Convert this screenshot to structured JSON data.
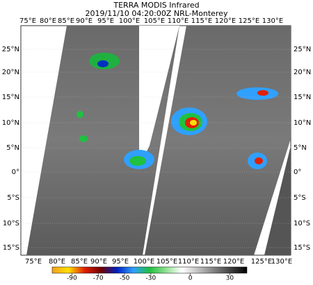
{
  "map": {
    "title": "TERRA MODIS Infrared",
    "subtitle": "2019/11/10 04:20:00Z NRL-Monterey",
    "lon_labels_top": [
      "75°E",
      "80°E",
      "85°E",
      "90°E",
      "95°E",
      "100°E",
      "105°E",
      "110°E",
      "115°E",
      "120°E",
      "125°E",
      "130°E"
    ],
    "lon_labels_bottom": [
      "75°E",
      "80°E",
      "85°E",
      "90°E",
      "95°E",
      "100°E",
      "105°E",
      "110°E",
      "115°E",
      "120°E",
      "125°E",
      "130°E"
    ],
    "lat_labels": [
      "25°N",
      "20°N",
      "15°N",
      "10°N",
      "5°N",
      "0°",
      "5°S",
      "10°S",
      "15°S"
    ],
    "colorbar": {
      "lim": [
        -105,
        43
      ],
      "ticks": [
        -90,
        -70,
        -50,
        -30,
        0,
        30
      ],
      "colors": [
        "#f0a020",
        "#ffe000",
        "#e02000",
        "#700000",
        "#0020c0",
        "#30a0ff",
        "#20c040",
        "#90e090",
        "#ffffff",
        "#c0c0c0",
        "#808080",
        "#404040",
        "#000000"
      ]
    }
  }
}
